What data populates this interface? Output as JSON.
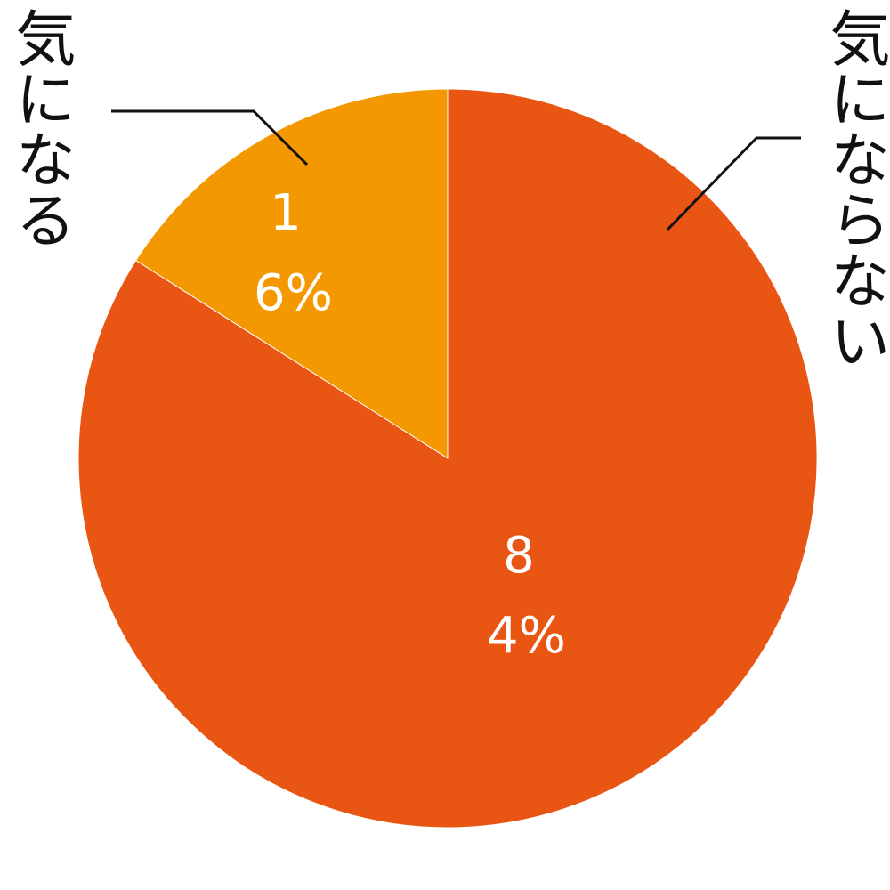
{
  "chart_data": {
    "type": "pie",
    "categories": [
      "気になる",
      "気にならない"
    ],
    "values": [
      16,
      84
    ],
    "value_labels": [
      "16%",
      "84%"
    ],
    "colors": [
      "#f39800",
      "#e95513"
    ]
  }
}
